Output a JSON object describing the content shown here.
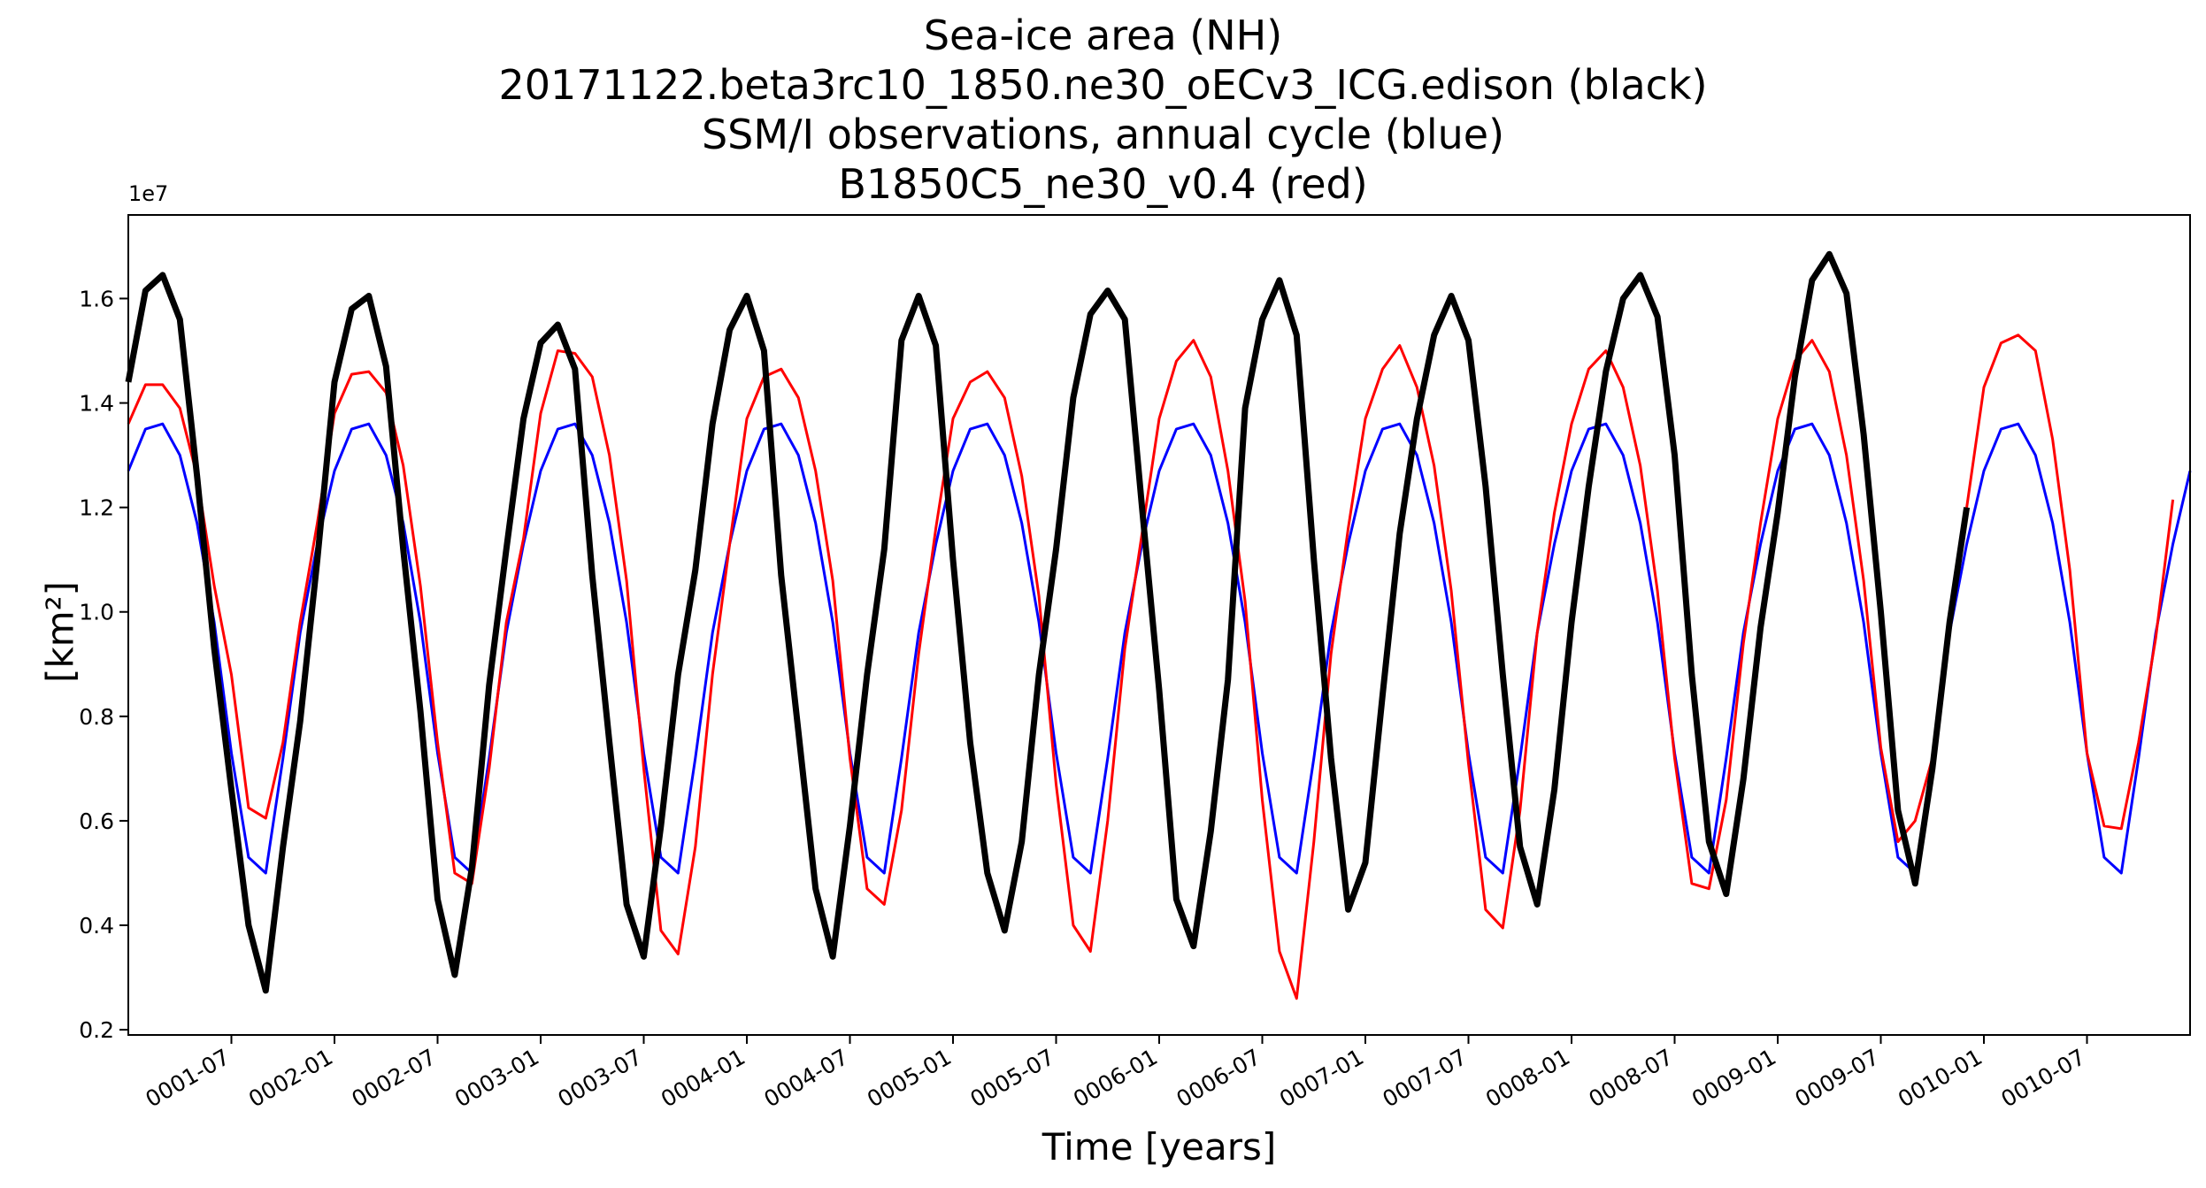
{
  "chart_data": {
    "type": "line",
    "title_lines": [
      "Sea-ice area (NH)",
      "20171122.beta3rc10_1850.ne30_oECv3_ICG.edison (black)",
      "SSM/I observations, annual cycle (blue)",
      "B1850C5_ne30_v0.4 (red)"
    ],
    "xlabel": "Time [years]",
    "ylabel": "[km²]",
    "y_offset_text": "1e7",
    "xlim": [
      0,
      120
    ],
    "ylim": [
      0.19,
      1.76
    ],
    "y_scale_factor": 10000000,
    "x_ticks": [
      {
        "x": 6,
        "label": "0001-07"
      },
      {
        "x": 12,
        "label": "0002-01"
      },
      {
        "x": 18,
        "label": "0002-07"
      },
      {
        "x": 24,
        "label": "0003-01"
      },
      {
        "x": 30,
        "label": "0003-07"
      },
      {
        "x": 36,
        "label": "0004-01"
      },
      {
        "x": 42,
        "label": "0004-07"
      },
      {
        "x": 48,
        "label": "0005-01"
      },
      {
        "x": 54,
        "label": "0005-07"
      },
      {
        "x": 60,
        "label": "0006-01"
      },
      {
        "x": 66,
        "label": "0006-07"
      },
      {
        "x": 72,
        "label": "0007-01"
      },
      {
        "x": 78,
        "label": "0007-07"
      },
      {
        "x": 84,
        "label": "0008-01"
      },
      {
        "x": 90,
        "label": "0008-07"
      },
      {
        "x": 96,
        "label": "0009-01"
      },
      {
        "x": 102,
        "label": "0009-07"
      },
      {
        "x": 108,
        "label": "0010-01"
      },
      {
        "x": 114,
        "label": "0010-07"
      }
    ],
    "y_ticks": [
      {
        "y": 0.2,
        "label": "0.2"
      },
      {
        "y": 0.4,
        "label": "0.4"
      },
      {
        "y": 0.6,
        "label": "0.6"
      },
      {
        "y": 0.8,
        "label": "0.8"
      },
      {
        "y": 1.0,
        "label": "1.0"
      },
      {
        "y": 1.2,
        "label": "1.2"
      },
      {
        "y": 1.4,
        "label": "1.4"
      },
      {
        "y": 1.6,
        "label": "1.6"
      }
    ],
    "series": [
      {
        "color": "#0000ff",
        "stroke_width": 3,
        "annual_cycle": [
          1.27,
          1.35,
          1.36,
          1.3,
          1.17,
          0.98,
          0.73,
          0.53,
          0.5,
          0.72,
          0.96,
          1.13
        ],
        "values_x_start": 0
      },
      {
        "color": "#ff0000",
        "stroke_width": 3,
        "yearly_values": [
          [
            1.36,
            1.435,
            1.435,
            1.39,
            1.26,
            1.05,
            0.88,
            0.625,
            0.605,
            0.75,
            0.98,
            1.17
          ],
          [
            1.38,
            1.455,
            1.46,
            1.42,
            1.28,
            1.05,
            0.75,
            0.5,
            0.48,
            0.7,
            0.98,
            1.14
          ],
          [
            1.38,
            1.5,
            1.495,
            1.45,
            1.3,
            1.06,
            0.7,
            0.39,
            0.345,
            0.55,
            0.88,
            1.13
          ],
          [
            1.37,
            1.45,
            1.465,
            1.41,
            1.27,
            1.06,
            0.72,
            0.47,
            0.44,
            0.62,
            0.92,
            1.16
          ],
          [
            1.37,
            1.44,
            1.46,
            1.41,
            1.26,
            1.03,
            0.67,
            0.4,
            0.35,
            0.6,
            0.93,
            1.15
          ],
          [
            1.37,
            1.48,
            1.52,
            1.45,
            1.27,
            1.02,
            0.64,
            0.35,
            0.26,
            0.56,
            0.92,
            1.16
          ],
          [
            1.37,
            1.465,
            1.51,
            1.43,
            1.28,
            1.04,
            0.71,
            0.43,
            0.395,
            0.62,
            0.96,
            1.19
          ],
          [
            1.36,
            1.465,
            1.5,
            1.43,
            1.28,
            1.04,
            0.72,
            0.48,
            0.47,
            0.64,
            0.94,
            1.17
          ],
          [
            1.37,
            1.48,
            1.52,
            1.46,
            1.3,
            1.06,
            0.74,
            0.56,
            0.6,
            0.72,
            0.98,
            1.2
          ],
          [
            1.43,
            1.515,
            1.53,
            1.5,
            1.33,
            1.08,
            0.73,
            0.59,
            0.585,
            0.75,
            0.95,
            1.215
          ]
        ],
        "values_x_start": 0
      },
      {
        "color": "#000000",
        "stroke_width": 7,
        "yearly_values": [
          [
            1.44,
            1.615,
            1.645,
            1.56,
            1.26,
            0.93,
            0.66,
            0.4,
            0.275,
            0.55,
            0.79,
            1.1
          ],
          [
            1.44,
            1.58,
            1.605,
            1.47,
            1.12,
            0.81,
            0.45,
            0.305,
            0.51,
            0.86,
            1.12,
            1.37
          ],
          [
            1.515,
            1.55,
            1.465,
            1.07,
            0.75,
            0.44,
            0.34,
            0.59,
            0.88,
            1.08,
            1.36,
            1.54
          ],
          [
            1.605,
            1.5,
            1.07,
            0.77,
            0.47,
            0.34,
            0.59,
            0.88,
            1.12,
            1.52,
            1.605,
            1.51
          ],
          [
            1.1,
            0.75,
            0.5,
            0.39,
            0.56,
            0.88,
            1.12,
            1.41,
            1.57,
            1.615,
            1.56,
            1.2
          ],
          [
            0.85,
            0.45,
            0.36,
            0.58,
            0.87,
            1.39,
            1.56,
            1.635,
            1.53,
            1.1,
            0.72,
            0.43
          ],
          [
            0.52,
            0.84,
            1.15,
            1.37,
            1.53,
            1.605,
            1.52,
            1.24,
            0.88,
            0.55,
            0.44,
            0.66
          ],
          [
            0.98,
            1.24,
            1.46,
            1.6,
            1.645,
            1.565,
            1.3,
            0.88,
            0.56,
            0.46,
            0.68,
            0.97
          ],
          [
            1.19,
            1.45,
            1.635,
            1.685,
            1.61,
            1.34,
            1.0,
            0.62,
            0.48,
            0.7,
            0.98,
            1.2
          ]
        ],
        "values_x_start": 0
      }
    ]
  }
}
